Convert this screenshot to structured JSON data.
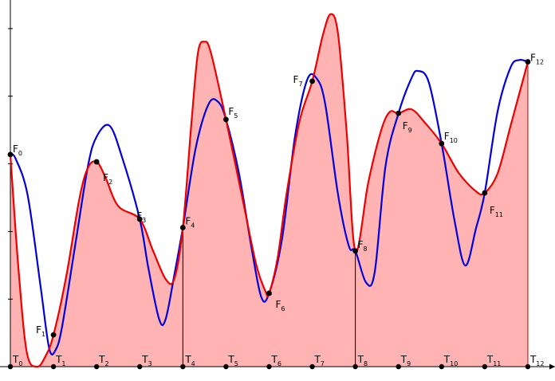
{
  "diagram": {
    "colors": {
      "background": "#ffffff",
      "fill_area": "#ffb3b3",
      "red_curve": "#ee0000",
      "blue_curve": "#0000dd",
      "axis": "#000000",
      "point": "#000000"
    },
    "x_range": [
      0,
      12.4
    ],
    "y_range": [
      0,
      1.0
    ],
    "ticks_x": [
      {
        "base": "T",
        "sub": "0"
      },
      {
        "base": "T",
        "sub": "1"
      },
      {
        "base": "T",
        "sub": "2"
      },
      {
        "base": "T",
        "sub": "3"
      },
      {
        "base": "T",
        "sub": "4"
      },
      {
        "base": "T",
        "sub": "5"
      },
      {
        "base": "T",
        "sub": "6"
      },
      {
        "base": "T",
        "sub": "7"
      },
      {
        "base": "T",
        "sub": "8"
      },
      {
        "base": "T",
        "sub": "9"
      },
      {
        "base": "T",
        "sub": "10"
      },
      {
        "base": "T",
        "sub": "11"
      },
      {
        "base": "T",
        "sub": "12"
      }
    ],
    "y_ticks": [
      0.185,
      0.37,
      0.556,
      0.741,
      0.926
    ],
    "vertical_lines_at": [
      4,
      8
    ],
    "points": [
      {
        "base": "F",
        "sub": "0",
        "x": 0,
        "y": 0.581
      },
      {
        "base": "F",
        "sub": "1",
        "x": 1,
        "y": 0.087
      },
      {
        "base": "F",
        "sub": "2",
        "x": 2,
        "y": 0.561
      },
      {
        "base": "F",
        "sub": "3",
        "x": 3,
        "y": 0.404
      },
      {
        "base": "F",
        "sub": "4",
        "x": 4,
        "y": 0.381
      },
      {
        "base": "F",
        "sub": "5",
        "x": 5,
        "y": 0.677
      },
      {
        "base": "F",
        "sub": "6",
        "x": 6,
        "y": 0.201
      },
      {
        "base": "F",
        "sub": "7",
        "x": 7,
        "y": 0.782
      },
      {
        "base": "F",
        "sub": "8",
        "x": 8,
        "y": 0.317
      },
      {
        "base": "F",
        "sub": "9",
        "x": 9,
        "y": 0.694
      },
      {
        "base": "F",
        "sub": "10",
        "x": 10,
        "y": 0.611
      },
      {
        "base": "F",
        "sub": "11",
        "x": 11,
        "y": 0.476
      },
      {
        "base": "F",
        "sub": "12",
        "x": 12,
        "y": 0.835
      }
    ],
    "red_curve": [
      [
        0,
        0.581
      ],
      [
        0.18,
        0.28
      ],
      [
        0.38,
        0.04
      ],
      [
        0.62,
        0.0
      ],
      [
        0.82,
        0.03
      ],
      [
        1,
        0.087
      ],
      [
        1.3,
        0.25
      ],
      [
        1.6,
        0.46
      ],
      [
        1.8,
        0.545
      ],
      [
        2,
        0.561
      ],
      [
        2.2,
        0.52
      ],
      [
        2.5,
        0.44
      ],
      [
        3,
        0.404
      ],
      [
        3.3,
        0.32
      ],
      [
        3.6,
        0.24
      ],
      [
        3.8,
        0.24
      ],
      [
        4,
        0.381
      ],
      [
        4.2,
        0.67
      ],
      [
        4.35,
        0.86
      ],
      [
        4.5,
        0.89
      ],
      [
        4.65,
        0.86
      ],
      [
        5,
        0.677
      ],
      [
        5.4,
        0.45
      ],
      [
        5.7,
        0.28
      ],
      [
        5.92,
        0.205
      ],
      [
        6,
        0.201
      ],
      [
        6.2,
        0.3
      ],
      [
        6.4,
        0.47
      ],
      [
        6.7,
        0.67
      ],
      [
        7,
        0.782
      ],
      [
        7.25,
        0.91
      ],
      [
        7.43,
        0.966
      ],
      [
        7.6,
        0.91
      ],
      [
        7.8,
        0.64
      ],
      [
        8,
        0.317
      ],
      [
        8.3,
        0.505
      ],
      [
        8.6,
        0.648
      ],
      [
        8.8,
        0.698
      ],
      [
        9,
        0.694
      ],
      [
        9.3,
        0.705
      ],
      [
        9.6,
        0.67
      ],
      [
        10,
        0.611
      ],
      [
        10.4,
        0.53
      ],
      [
        10.8,
        0.48
      ],
      [
        11,
        0.476
      ],
      [
        11.3,
        0.53
      ],
      [
        11.6,
        0.66
      ],
      [
        12,
        0.835
      ]
    ],
    "blue_curve": [
      [
        0,
        0.581
      ],
      [
        0.12,
        0.57
      ],
      [
        0.4,
        0.47
      ],
      [
        0.7,
        0.22
      ],
      [
        0.9,
        0.05
      ],
      [
        1.05,
        0.046
      ],
      [
        1.2,
        0.11
      ],
      [
        1.5,
        0.33
      ],
      [
        1.8,
        0.55
      ],
      [
        2,
        0.63
      ],
      [
        2.3,
        0.66
      ],
      [
        2.6,
        0.57
      ],
      [
        3,
        0.404
      ],
      [
        3.2,
        0.27
      ],
      [
        3.45,
        0.13
      ],
      [
        3.6,
        0.13
      ],
      [
        3.8,
        0.25
      ],
      [
        4,
        0.381
      ],
      [
        4.3,
        0.6
      ],
      [
        4.6,
        0.72
      ],
      [
        4.82,
        0.725
      ],
      [
        5,
        0.677
      ],
      [
        5.3,
        0.53
      ],
      [
        5.6,
        0.32
      ],
      [
        5.82,
        0.19
      ],
      [
        6,
        0.201
      ],
      [
        6.3,
        0.35
      ],
      [
        6.6,
        0.63
      ],
      [
        6.88,
        0.785
      ],
      [
        7.1,
        0.79
      ],
      [
        7.3,
        0.72
      ],
      [
        7.6,
        0.47
      ],
      [
        7.85,
        0.33
      ],
      [
        8,
        0.317
      ],
      [
        8.25,
        0.23
      ],
      [
        8.45,
        0.26
      ],
      [
        8.7,
        0.55
      ],
      [
        9,
        0.694
      ],
      [
        9.3,
        0.79
      ],
      [
        9.45,
        0.81
      ],
      [
        9.7,
        0.78
      ],
      [
        10,
        0.611
      ],
      [
        10.3,
        0.4
      ],
      [
        10.55,
        0.277
      ],
      [
        10.8,
        0.38
      ],
      [
        11,
        0.476
      ],
      [
        11.3,
        0.7
      ],
      [
        11.6,
        0.82
      ],
      [
        11.8,
        0.84
      ],
      [
        12,
        0.835
      ]
    ]
  }
}
